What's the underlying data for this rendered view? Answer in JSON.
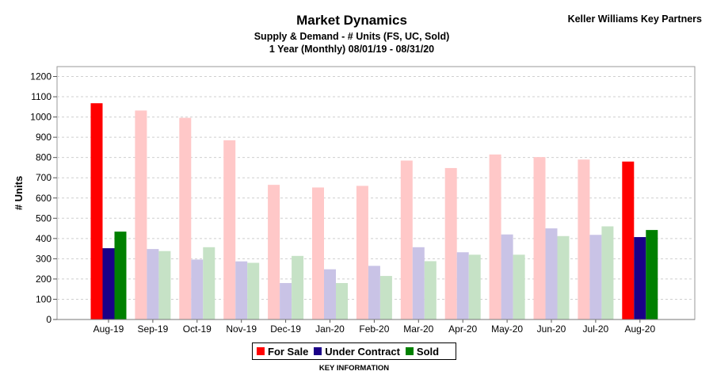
{
  "header": {
    "title": "Market Dynamics",
    "subtitle_line1": "Supply & Demand - # Units (FS, UC, Sold)",
    "subtitle_line2": "1 Year (Monthly) 08/01/19 - 08/31/20",
    "brand": "Keller Williams Key Partners"
  },
  "legend": {
    "items": [
      {
        "label": "For Sale",
        "color": "#ff0000"
      },
      {
        "label": "Under Contract",
        "color": "#1a0087"
      },
      {
        "label": "Sold",
        "color": "#008000"
      }
    ],
    "caption": "KEY INFORMATION"
  },
  "chart_data": {
    "type": "bar",
    "title": "Market Dynamics",
    "ylabel": "# Units",
    "xlabel": "",
    "ylim": [
      0,
      1200
    ],
    "yticks": [
      0,
      100,
      200,
      300,
      400,
      500,
      600,
      700,
      800,
      900,
      1000,
      1100,
      1200
    ],
    "grid": true,
    "legend_position": "bottom",
    "categories": [
      "Aug-19",
      "Sep-19",
      "Oct-19",
      "Nov-19",
      "Dec-19",
      "Jan-20",
      "Feb-20",
      "Mar-20",
      "Apr-20",
      "May-20",
      "Jun-20",
      "Jul-20",
      "Aug-20"
    ],
    "highlighted_categories": [
      "Aug-19",
      "Aug-20"
    ],
    "series": [
      {
        "name": "For Sale",
        "color": "#ff0000",
        "faded_color": "#ffc8c8",
        "values": [
          1068,
          1032,
          996,
          885,
          665,
          652,
          660,
          785,
          748,
          815,
          802,
          790,
          780
        ]
      },
      {
        "name": "Under Contract",
        "color": "#1a0087",
        "faded_color": "#c9c3e6",
        "values": [
          352,
          348,
          296,
          287,
          180,
          248,
          265,
          357,
          332,
          420,
          450,
          418,
          407
        ]
      },
      {
        "name": "Sold",
        "color": "#008000",
        "faded_color": "#c6e2c6",
        "values": [
          434,
          338,
          357,
          280,
          314,
          180,
          215,
          288,
          320,
          320,
          412,
          460,
          442
        ]
      }
    ]
  }
}
